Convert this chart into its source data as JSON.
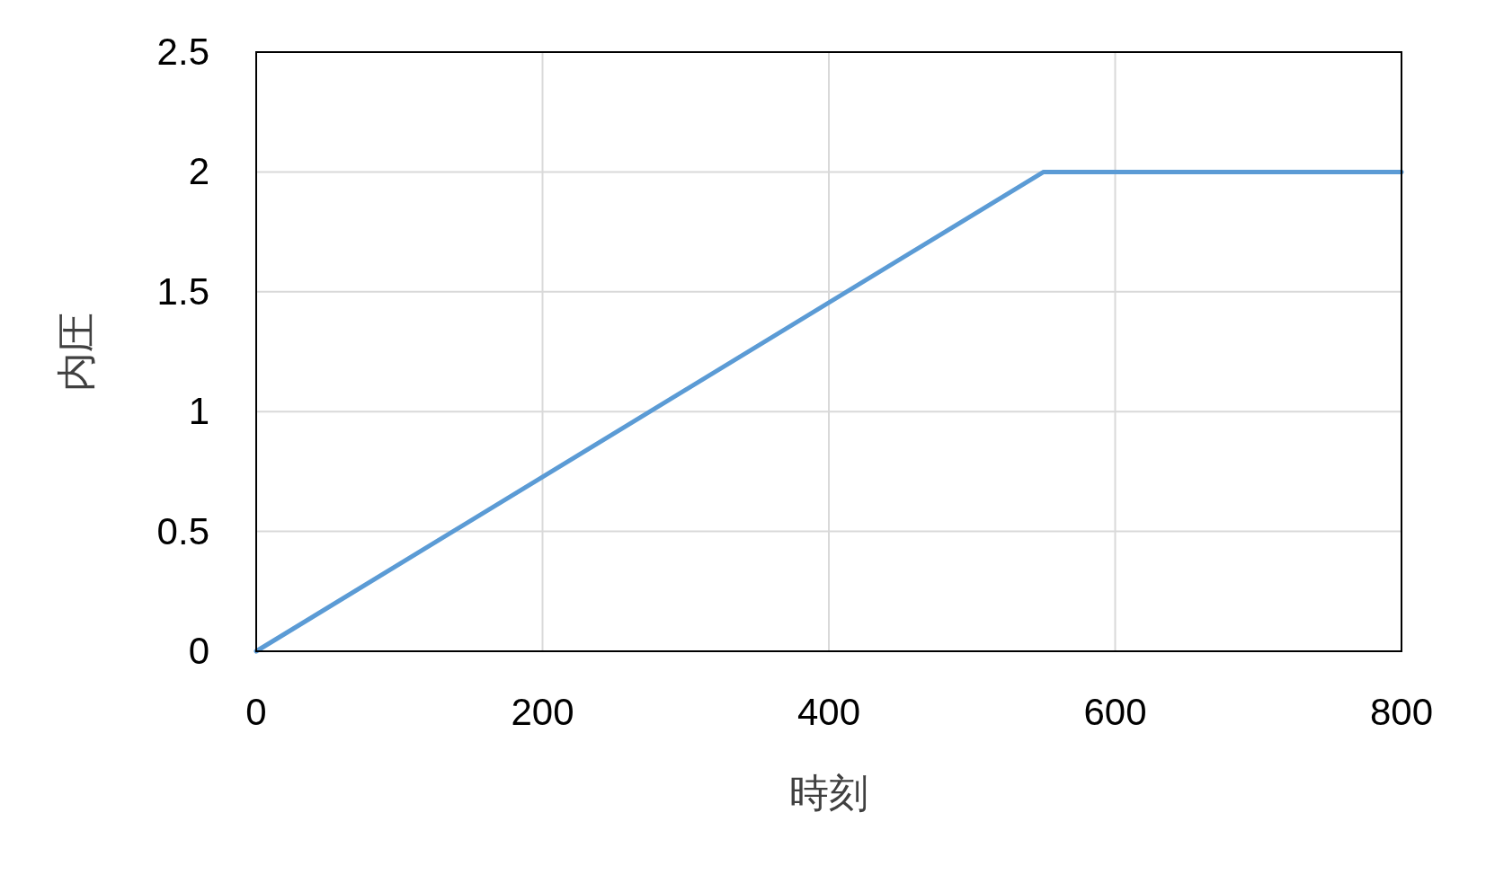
{
  "chart_data": {
    "type": "line",
    "xlabel": "時刻",
    "ylabel": "内圧",
    "x": [
      0,
      550,
      800
    ],
    "series": [
      {
        "color": "#5b9bd5",
        "values": [
          0,
          2,
          2
        ]
      }
    ],
    "xlim": [
      0,
      800
    ],
    "ylim": [
      0,
      2.5
    ],
    "xticks": [
      0,
      200,
      400,
      600,
      800
    ],
    "yticks": [
      0,
      0.5,
      1,
      1.5,
      2,
      2.5
    ],
    "grid": true
  }
}
